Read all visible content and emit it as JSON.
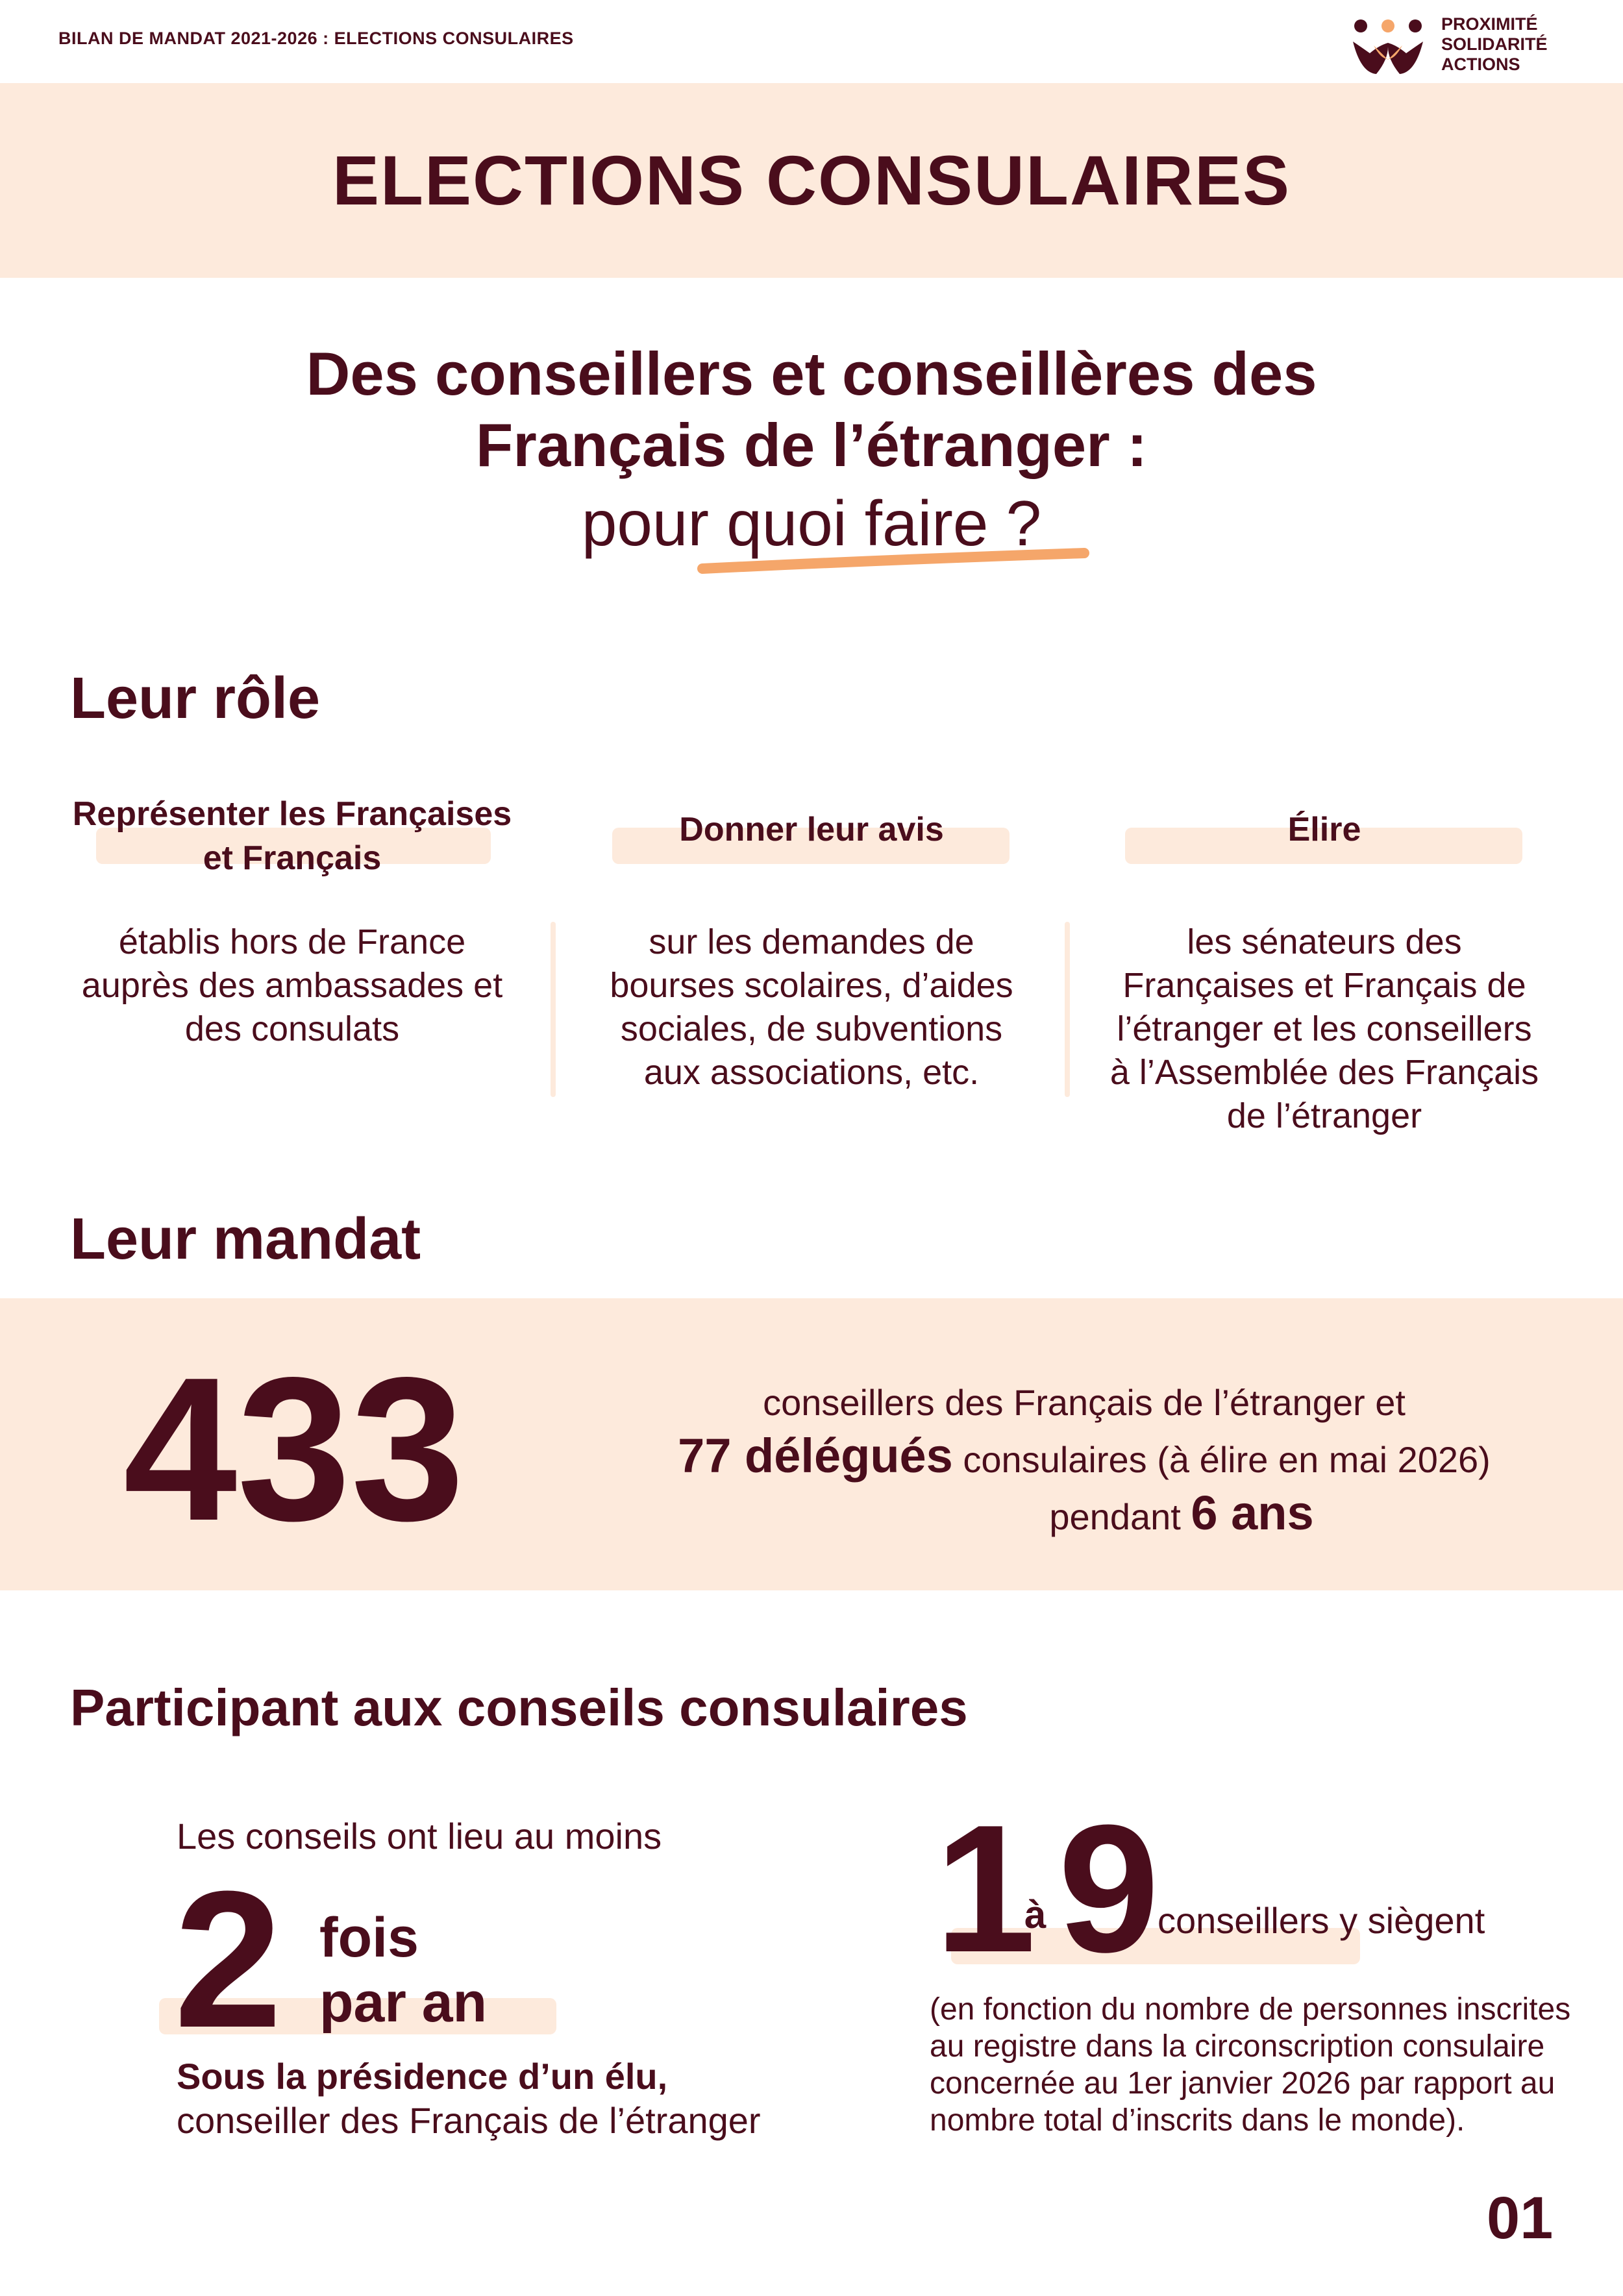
{
  "header": {
    "label": "BILAN DE MANDAT 2021-2026 : ELECTIONS CONSULAIRES"
  },
  "logo": {
    "line1": "PROXIMITÉ",
    "line2": "SOLIDARITÉ",
    "line3": "ACTIONS"
  },
  "title": "ELECTIONS CONSULAIRES",
  "headline": {
    "line1": "Des conseillers et conseillères des",
    "line2": "Français de l’étranger :",
    "line3": "pour quoi faire ?"
  },
  "role": {
    "title": "Leur rôle",
    "columns": [
      {
        "head_line1": "Représenter les Françaises",
        "head_line2": "et Français",
        "body": [
          "établis hors de France",
          "auprès des ambassades et",
          "des consulats"
        ]
      },
      {
        "head_line1": "Donner leur avis",
        "head_line2": "",
        "body": [
          "sur les demandes de",
          "bourses scolaires, d’aides",
          "sociales, de subventions",
          "aux associations, etc."
        ]
      },
      {
        "head_line1": "Élire",
        "head_line2": "",
        "body": [
          "les sénateurs des",
          "Françaises et Français de",
          "l’étranger et les conseillers",
          "à l’Assemblée des Français",
          "de l’étranger"
        ]
      }
    ]
  },
  "mandat": {
    "title": "Leur mandat",
    "big_number": "433",
    "line1": "conseillers des Français de l’étranger et",
    "line2_strong": "77 délégués",
    "line2_rest": " consulaires (à élire en mai 2026)",
    "line3_prefix": "pendant ",
    "line3_strong": "6 ans"
  },
  "conseils": {
    "title": "Participant aux conseils consulaires",
    "left": {
      "intro": "Les conseils ont lieu au moins",
      "big": "2",
      "unit1": "fois",
      "unit2": "par an",
      "bold_line": "Sous la présidence d’un élu,",
      "line": "conseiller des Français de l’étranger"
    },
    "right": {
      "from": "1",
      "a": "à",
      "to": "9",
      "label": "conseillers y siègent",
      "note": [
        "(en fonction du nombre de personnes inscrites",
        "au registre dans la circonscription consulaire",
        "concernée au 1er janvier 2026 par rapport au",
        "nombre total d’inscrits dans le monde)."
      ]
    }
  },
  "page_number": "01",
  "colors": {
    "primary": "#4a0d1c",
    "band": "#fdeadc",
    "accent_orange": "#f5a66a",
    "accent_peach": "#f7c29a"
  }
}
